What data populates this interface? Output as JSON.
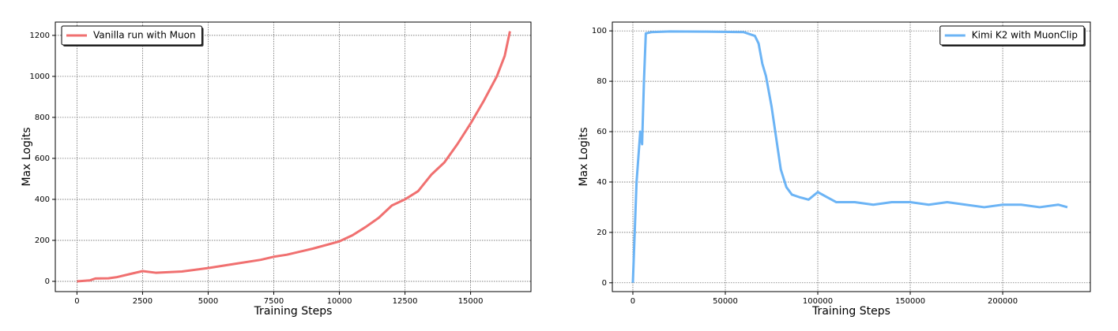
{
  "chart_data": [
    {
      "type": "line",
      "xlabel": "Training Steps",
      "ylabel": "Max Logits",
      "x": [
        0,
        500,
        700,
        1200,
        1500,
        2000,
        2500,
        3000,
        4000,
        5000,
        6000,
        7000,
        7500,
        8000,
        9000,
        10000,
        10500,
        11000,
        11500,
        12000,
        12500,
        13000,
        13500,
        14000,
        14500,
        15000,
        15500,
        16000,
        16300,
        16500
      ],
      "series": [
        {
          "name": "Vanilla run with Muon",
          "color": "#f07070",
          "values": [
            0,
            5,
            14,
            15,
            20,
            35,
            50,
            42,
            48,
            65,
            85,
            105,
            120,
            130,
            160,
            195,
            225,
            265,
            310,
            370,
            400,
            440,
            520,
            580,
            670,
            770,
            880,
            1000,
            1100,
            1220
          ]
        }
      ],
      "xlim": [
        -825,
        17300
      ],
      "ylim": [
        -50,
        1265
      ],
      "xticks": [
        0,
        2500,
        5000,
        7500,
        10000,
        12500,
        15000
      ],
      "yticks": [
        0,
        200,
        400,
        600,
        800,
        1000,
        1200
      ],
      "grid": true,
      "legend": "upper left"
    },
    {
      "type": "line",
      "xlabel": "Training Steps",
      "ylabel": "Max Logits",
      "x": [
        0,
        1000,
        2000,
        3000,
        4000,
        5000,
        6000,
        7000,
        10000,
        20000,
        40000,
        60000,
        66000,
        68000,
        70000,
        72000,
        75000,
        78000,
        80000,
        83000,
        86000,
        90000,
        95000,
        100000,
        105000,
        110000,
        120000,
        130000,
        140000,
        150000,
        160000,
        170000,
        180000,
        190000,
        200000,
        210000,
        220000,
        230000,
        235000
      ],
      "series": [
        {
          "name": "Kimi K2 with MuonClip",
          "color": "#6cb4f5",
          "values": [
            0,
            20,
            40,
            50,
            60,
            55,
            80,
            99,
            99.5,
            99.8,
            99.7,
            99.5,
            98,
            95,
            87,
            82,
            70,
            55,
            45,
            38,
            35,
            34,
            33,
            36,
            34,
            32,
            32,
            31,
            32,
            32,
            31,
            32,
            31,
            30,
            31,
            31,
            30,
            31,
            30
          ]
        }
      ],
      "xlim": [
        -11100,
        247400
      ],
      "ylim": [
        -3.5,
        103.5
      ],
      "xticks": [
        0,
        50000,
        100000,
        150000,
        200000
      ],
      "yticks": [
        0,
        20,
        40,
        60,
        80,
        100
      ],
      "grid": true,
      "legend": "upper right"
    }
  ]
}
